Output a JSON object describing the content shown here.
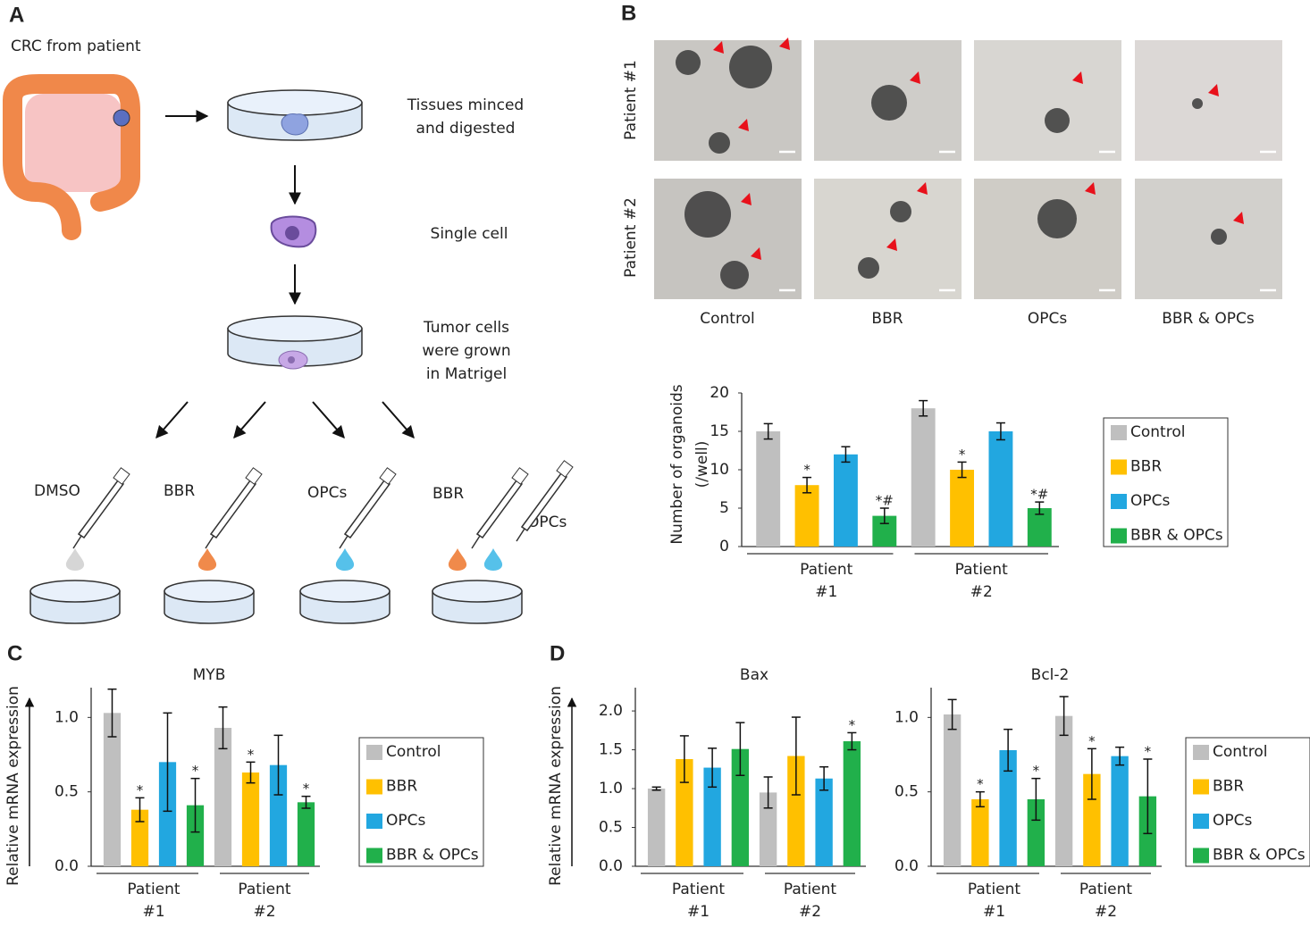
{
  "panels": [
    "A",
    "B",
    "C",
    "D"
  ],
  "diagram": {
    "source": "CRC from patient",
    "step1": [
      "Tissues minced",
      "and digested"
    ],
    "step2": "Single cell",
    "step3": [
      "Tumor cells",
      "were grown",
      "in Matrigel"
    ],
    "treatments": [
      "DMSO",
      "BBR",
      "OPCs",
      "BBR",
      "OPCs"
    ]
  },
  "micrographs": {
    "rows": [
      "Patient #1",
      "Patient #2"
    ],
    "columns": [
      "Control",
      "BBR",
      "OPCs",
      "BBR & OPCs"
    ]
  },
  "chart_data": [
    {
      "type": "bar",
      "ylabel": [
        "Number of organoids",
        "(/well)"
      ],
      "categories": [
        "Patient #1",
        "Patient #2"
      ],
      "ylim": [
        0,
        20
      ],
      "yticks": [
        0,
        5,
        10,
        15,
        20
      ],
      "grid": false,
      "legend": true,
      "series": [
        {
          "name": "Control",
          "color": "#bfbfbf",
          "values": [
            15,
            18
          ],
          "errors": [
            1,
            1
          ],
          "significance": [
            null,
            null
          ]
        },
        {
          "name": "BBR",
          "color": "#ffc000",
          "values": [
            8,
            10
          ],
          "errors": [
            1,
            1
          ],
          "significance": [
            "*",
            "*"
          ]
        },
        {
          "name": "OPCs",
          "color": "#22a7e0",
          "values": [
            12,
            15
          ],
          "errors": [
            1,
            1.1
          ],
          "significance": [
            null,
            null
          ]
        },
        {
          "name": "BBR & OPCs",
          "color": "#21b04b",
          "values": [
            4,
            5
          ],
          "errors": [
            1,
            0.8
          ],
          "significance": [
            "*#",
            "*#"
          ]
        }
      ]
    },
    {
      "type": "bar",
      "title": "MYB",
      "ylabel": [
        "Relative mRNA expression"
      ],
      "categories": [
        "Patient #1",
        "Patient #2"
      ],
      "ylim": [
        0,
        1.2
      ],
      "yticks": [
        {
          "value": 0,
          "label": "0.0"
        },
        0.5,
        {
          "value": 1,
          "label": "1.0"
        }
      ],
      "grid": false,
      "legend": true,
      "series": [
        {
          "name": "Control",
          "color": "#bfbfbf",
          "values": [
            1.03,
            0.93
          ],
          "errors": [
            0.16,
            0.14
          ],
          "significance": [
            null,
            null
          ]
        },
        {
          "name": "BBR",
          "color": "#ffc000",
          "values": [
            0.38,
            0.63
          ],
          "errors": [
            0.08,
            0.07
          ],
          "significance": [
            "*",
            "*"
          ]
        },
        {
          "name": "OPCs",
          "color": "#22a7e0",
          "values": [
            0.7,
            0.68
          ],
          "errors": [
            0.33,
            0.2
          ],
          "significance": [
            null,
            null
          ]
        },
        {
          "name": "BBR & OPCs",
          "color": "#21b04b",
          "values": [
            0.41,
            0.43
          ],
          "errors": [
            0.18,
            0.04
          ],
          "significance": [
            "*",
            "*"
          ]
        }
      ]
    },
    {
      "type": "bar",
      "title": "Bax",
      "ylabel": [
        "Relative mRNA expression"
      ],
      "categories": [
        "Patient #1",
        "Patient #2"
      ],
      "ylim": [
        0,
        2.3
      ],
      "yticks": [
        {
          "value": 0,
          "label": "0.0"
        },
        0.5,
        {
          "value": 1,
          "label": "1.0"
        },
        1.5,
        {
          "value": 2,
          "label": "2.0"
        }
      ],
      "grid": false,
      "legend": false,
      "series": [
        {
          "name": "Control",
          "color": "#bfbfbf",
          "values": [
            1.0,
            0.95
          ],
          "errors": [
            0.02,
            0.2
          ],
          "significance": [
            null,
            null
          ]
        },
        {
          "name": "BBR",
          "color": "#ffc000",
          "values": [
            1.38,
            1.42
          ],
          "errors": [
            0.3,
            0.5
          ],
          "significance": [
            null,
            null
          ]
        },
        {
          "name": "OPCs",
          "color": "#22a7e0",
          "values": [
            1.27,
            1.13
          ],
          "errors": [
            0.25,
            0.15
          ],
          "significance": [
            null,
            null
          ]
        },
        {
          "name": "BBR & OPCs",
          "color": "#21b04b",
          "values": [
            1.51,
            1.61
          ],
          "errors": [
            0.34,
            0.11
          ],
          "significance": [
            null,
            "*"
          ]
        }
      ]
    },
    {
      "type": "bar",
      "title": "Bcl-2",
      "categories": [
        "Patient #1",
        "Patient #2"
      ],
      "ylim": [
        0,
        1.2
      ],
      "yticks": [
        {
          "value": 0,
          "label": "0.0"
        },
        0.5,
        {
          "value": 1,
          "label": "1.0"
        }
      ],
      "grid": false,
      "legend": true,
      "series": [
        {
          "name": "Control",
          "color": "#bfbfbf",
          "values": [
            1.02,
            1.01
          ],
          "errors": [
            0.1,
            0.13
          ],
          "significance": [
            null,
            null
          ]
        },
        {
          "name": "BBR",
          "color": "#ffc000",
          "values": [
            0.45,
            0.62
          ],
          "errors": [
            0.05,
            0.17
          ],
          "significance": [
            "*",
            "*"
          ]
        },
        {
          "name": "OPCs",
          "color": "#22a7e0",
          "values": [
            0.78,
            0.74
          ],
          "errors": [
            0.14,
            0.06
          ],
          "significance": [
            null,
            null
          ]
        },
        {
          "name": "BBR & OPCs",
          "color": "#21b04b",
          "values": [
            0.45,
            0.47
          ],
          "errors": [
            0.14,
            0.25
          ],
          "significance": [
            "*",
            "*"
          ]
        }
      ]
    }
  ]
}
